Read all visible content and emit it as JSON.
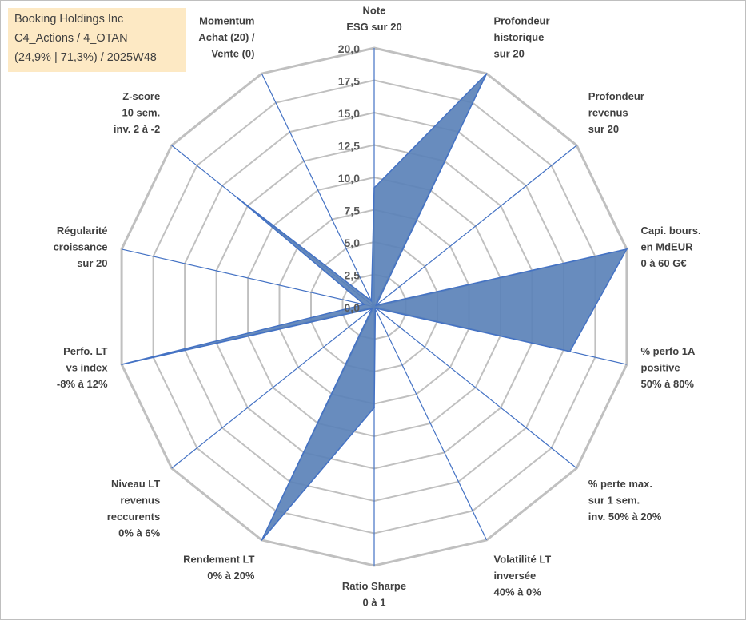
{
  "info": {
    "line1": "Booking Holdings Inc",
    "line2": "C4_Actions / 4_OTAN",
    "line3": "(24,9% | 71,3%) / 2025W48"
  },
  "colors": {
    "fill": "#5b82b8",
    "stroke": "#4472c4",
    "grid": "#c0c0c0",
    "info_bg": "#fde9c4"
  },
  "chart_data": {
    "type": "radar",
    "title": "",
    "rlim": [
      0,
      20
    ],
    "grid": true,
    "tick_labels": [
      "0,0",
      "2,5",
      "5,0",
      "7,5",
      "10,0",
      "12,5",
      "15,0",
      "17,5",
      "20,0"
    ],
    "axes": [
      "Note\nESG sur 20",
      "Profondeur\nhistorique\nsur 20",
      "Profondeur\nrevenus\nsur 20",
      "Capi. bours.\nen MdEUR\n0 à 60 G€",
      "% perfo 1A\npositive\n50% à 80%",
      "% perte max.\nsur 1 sem.\ninv. 50% à 20%",
      "Volatilité LT\ninversée\n40% à 0%",
      "Ratio Sharpe\n0 à 1",
      "Rendement LT\n0% à 20%",
      "Niveau LT\nrevenus\nreccurents\n0% à 6%",
      "Perfo. LT\nvs index\n-8% à 12%",
      "Régularité\ncroissance\nsur 20",
      "Z-score\n10 sem.\ninv. 2 à -2",
      "Momentum\nAchat (20) /\nVente (0)"
    ],
    "series": [
      {
        "values": [
          9.2,
          20.0,
          0.2,
          20.0,
          15.5,
          0.2,
          0.2,
          7.8,
          20.0,
          0.2,
          20.0,
          0.8,
          13.5,
          0.5
        ]
      }
    ]
  }
}
